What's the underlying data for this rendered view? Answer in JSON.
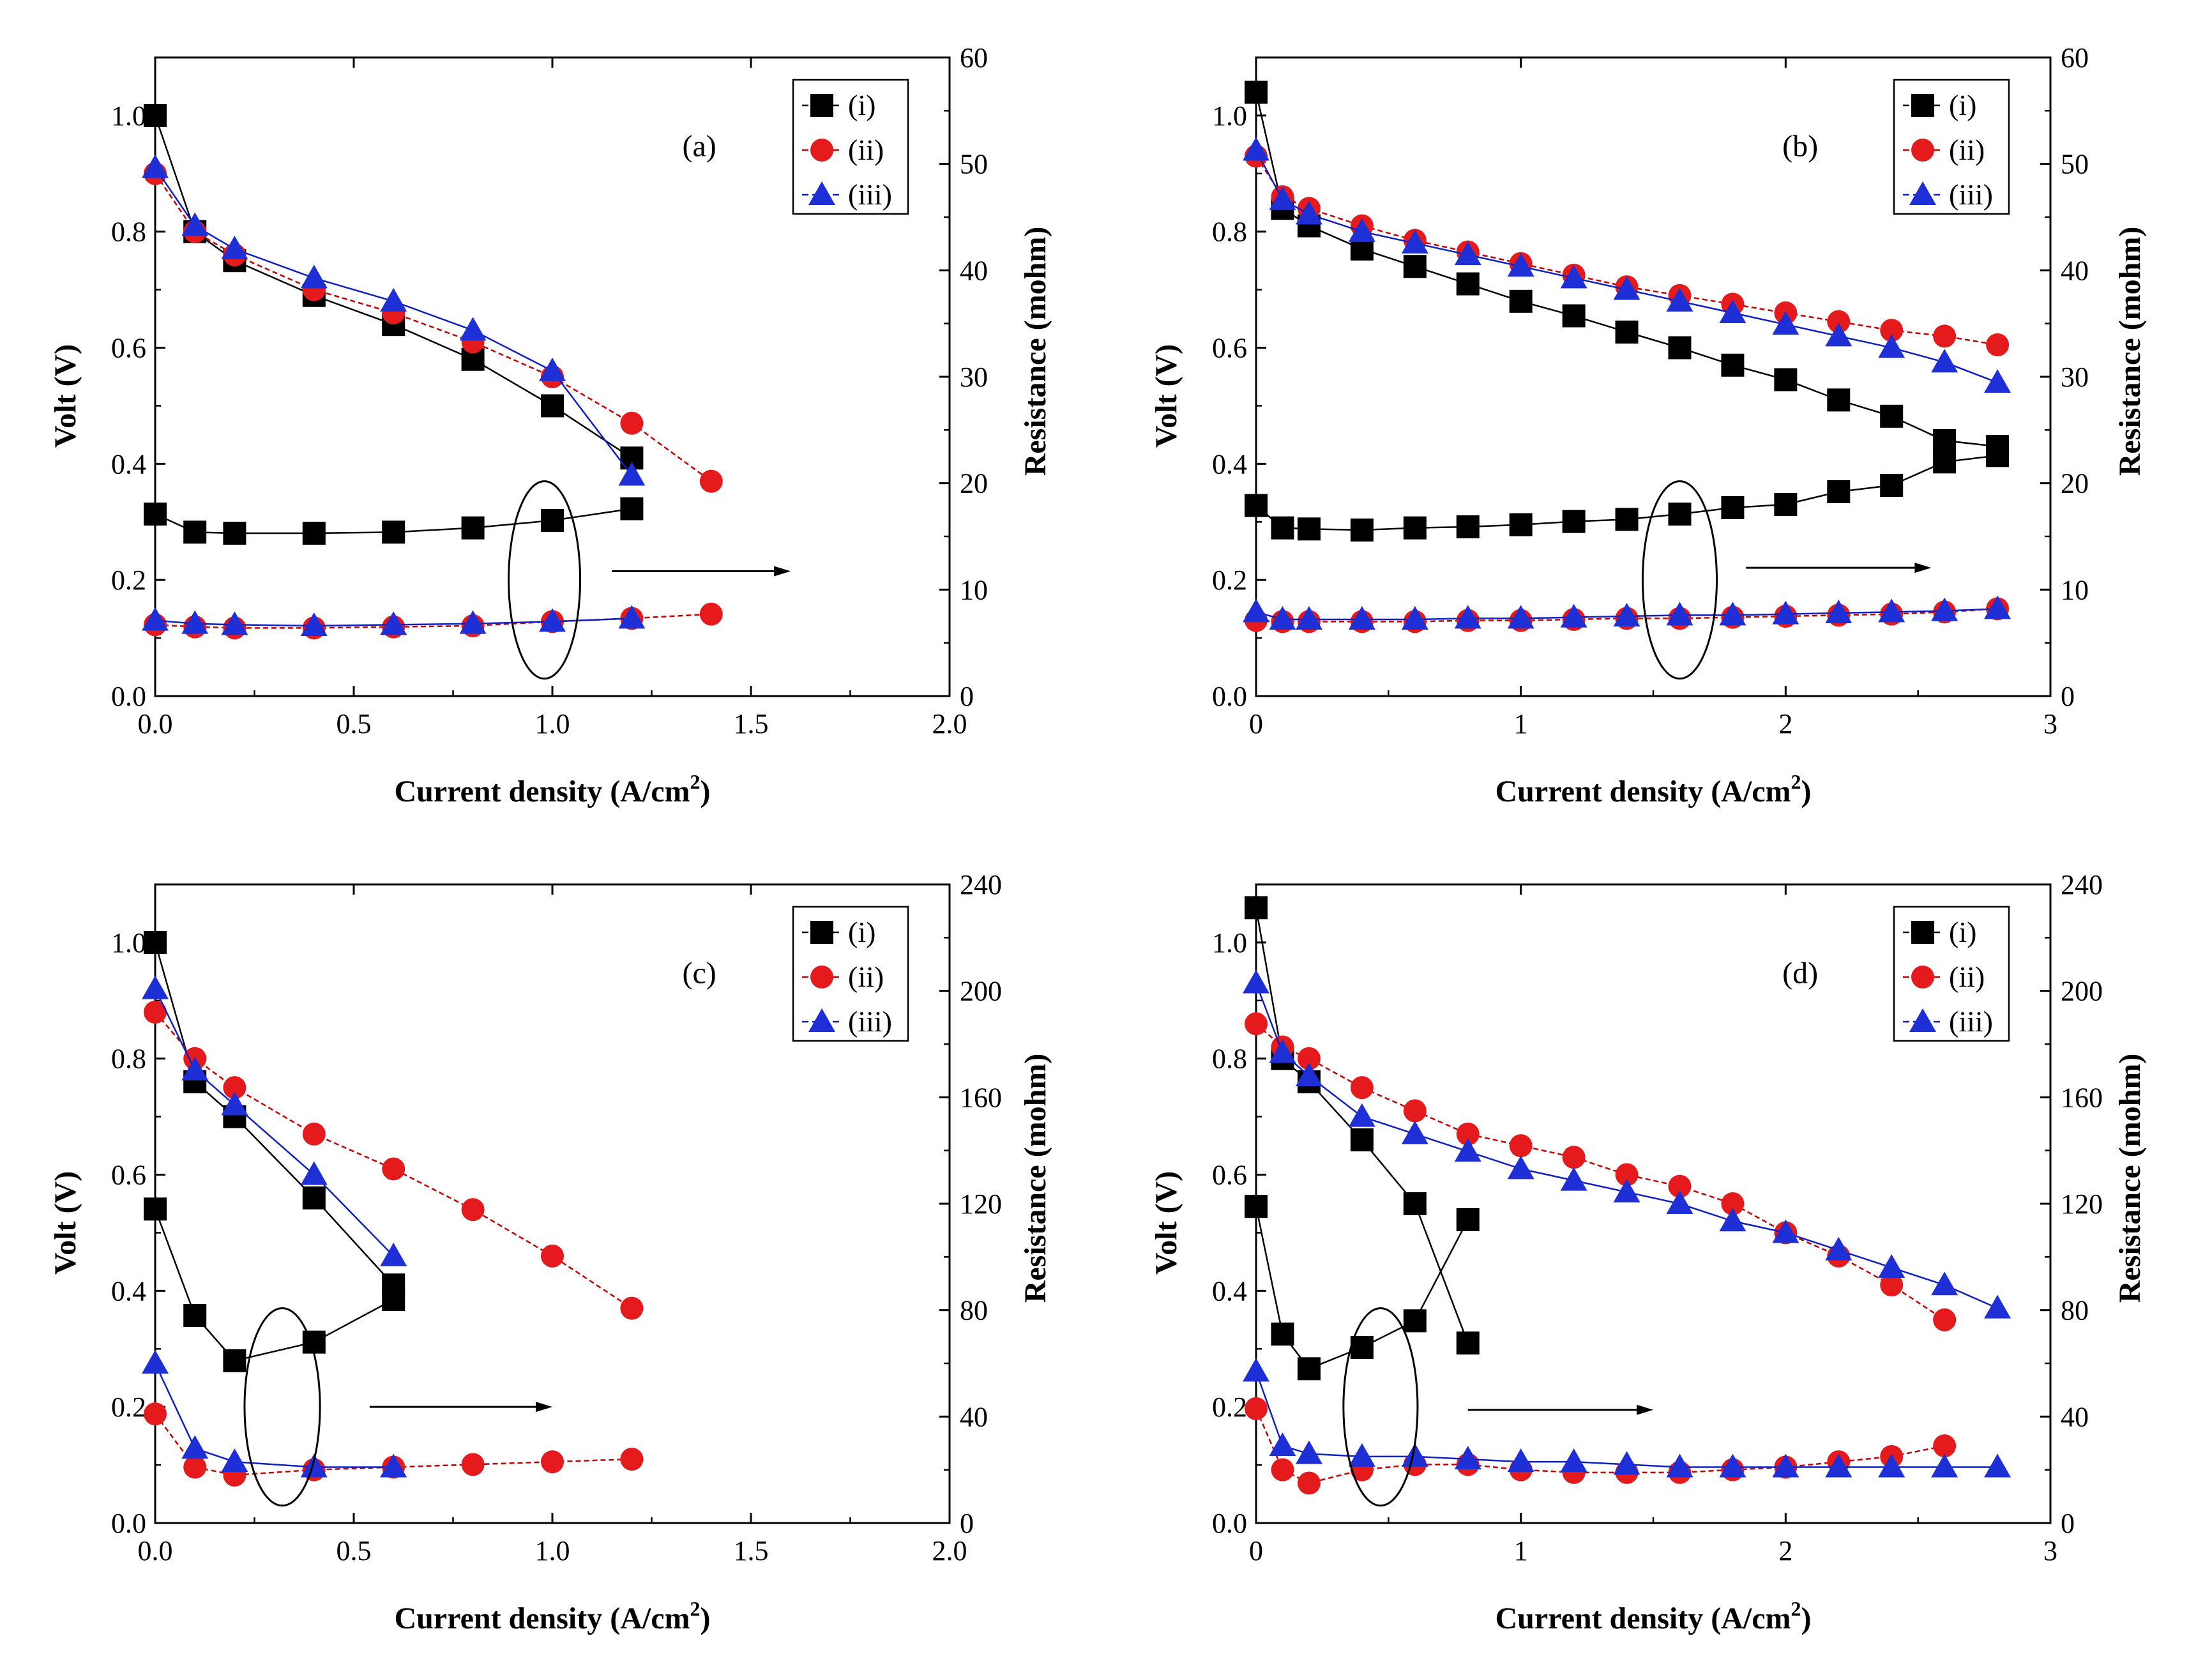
{
  "figure": {
    "description_panels": [
      "a",
      "b",
      "c",
      "d"
    ]
  },
  "colors": {
    "series_i": "#000000",
    "series_ii": "#e41a1c",
    "series_iii": "#1f2fd6",
    "line_i": "#000000",
    "line_ii": "#c40000",
    "line_iii": "#1020c0"
  },
  "chart_data": [
    {
      "type": "scatter",
      "panel": "(a)",
      "xlabel": "Current density (A/cm",
      "xlabel_sup": "2",
      "xlabel_close": ")",
      "ylabel_left": "Volt (V)",
      "ylabel_right": "Resistance (mohm)",
      "xlim": [
        0,
        2.0
      ],
      "ylim_left": [
        0,
        1.1
      ],
      "ylim_right": [
        0,
        60
      ],
      "xticks": [
        0,
        0.5,
        1.0,
        1.5,
        2.0
      ],
      "xtick_labels": [
        "0.0",
        "0.5",
        "1.0",
        "1.5",
        "2.0"
      ],
      "yticks_left": [
        0,
        0.2,
        0.4,
        0.6,
        0.8,
        1.0
      ],
      "ytick_labels_left": [
        "0.0",
        "0.2",
        "0.4",
        "0.6",
        "0.8",
        "1.0"
      ],
      "yticks_right": [
        0,
        10,
        20,
        30,
        40,
        50,
        60
      ],
      "ytick_labels_right": [
        "0",
        "10",
        "20",
        "30",
        "40",
        "50",
        "60"
      ],
      "legend": [
        "(i)",
        "(ii)",
        "(iii)"
      ],
      "legend_position": "top-right",
      "voltage": [
        {
          "name": "(i)",
          "x": [
            0,
            0.1,
            0.2,
            0.4,
            0.6,
            0.8,
            1.0,
            1.2
          ],
          "y": [
            1.0,
            0.8,
            0.75,
            0.69,
            0.64,
            0.58,
            0.5,
            0.41
          ]
        },
        {
          "name": "(ii)",
          "x": [
            0,
            0.1,
            0.2,
            0.4,
            0.6,
            0.8,
            1.0,
            1.2,
            1.4
          ],
          "y": [
            0.9,
            0.8,
            0.76,
            0.7,
            0.66,
            0.61,
            0.55,
            0.47,
            0.37
          ]
        },
        {
          "name": "(iii)",
          "x": [
            0,
            0.1,
            0.2,
            0.4,
            0.6,
            0.8,
            1.0,
            1.2
          ],
          "y": [
            0.91,
            0.81,
            0.77,
            0.72,
            0.68,
            0.63,
            0.56,
            0.38
          ]
        }
      ],
      "resistance": [
        {
          "name": "(i)",
          "x": [
            0,
            0.1,
            0.2,
            0.4,
            0.6,
            0.8,
            1.0,
            1.2
          ],
          "y": [
            17.1,
            15.4,
            15.3,
            15.3,
            15.4,
            15.8,
            16.5,
            17.6
          ]
        },
        {
          "name": "(ii)",
          "x": [
            0,
            0.1,
            0.2,
            0.4,
            0.6,
            0.8,
            1.0,
            1.2,
            1.4
          ],
          "y": [
            6.7,
            6.5,
            6.4,
            6.4,
            6.5,
            6.6,
            7.0,
            7.3,
            7.7
          ]
        },
        {
          "name": "(iii)",
          "x": [
            0,
            0.1,
            0.2,
            0.4,
            0.6,
            0.8,
            1.0,
            1.2
          ],
          "y": [
            7.1,
            6.8,
            6.7,
            6.6,
            6.7,
            6.8,
            7.0,
            7.3
          ]
        }
      ],
      "annotation": {
        "ellipse_center": [
          0.98,
          0.2
        ],
        "ellipse_radius": [
          0.09,
          0.17
        ],
        "arrow_from": [
          1.15,
          0.215
        ],
        "arrow_to": [
          1.6,
          0.215
        ]
      }
    },
    {
      "type": "scatter",
      "panel": "(b)",
      "xlabel": "Current density (A/cm",
      "xlabel_sup": "2",
      "xlabel_close": ")",
      "ylabel_left": "Volt (V)",
      "ylabel_right": "Resistance (mohm)",
      "xlim": [
        0,
        3
      ],
      "ylim_left": [
        0,
        1.1
      ],
      "ylim_right": [
        0,
        60
      ],
      "xticks": [
        0,
        1,
        2,
        3
      ],
      "xtick_labels": [
        "0",
        "1",
        "2",
        "3"
      ],
      "yticks_left": [
        0,
        0.2,
        0.4,
        0.6,
        0.8,
        1.0
      ],
      "ytick_labels_left": [
        "0.0",
        "0.2",
        "0.4",
        "0.6",
        "0.8",
        "1.0"
      ],
      "yticks_right": [
        0,
        10,
        20,
        30,
        40,
        50,
        60
      ],
      "ytick_labels_right": [
        "0",
        "10",
        "20",
        "30",
        "40",
        "50",
        "60"
      ],
      "legend": [
        "(i)",
        "(ii)",
        "(iii)"
      ],
      "legend_position": "top-right",
      "voltage": [
        {
          "name": "(i)",
          "x": [
            0,
            0.1,
            0.2,
            0.4,
            0.6,
            0.8,
            1.0,
            1.2,
            1.4,
            1.6,
            1.8,
            2.0,
            2.2,
            2.4,
            2.6,
            2.8
          ],
          "y": [
            1.04,
            0.84,
            0.81,
            0.77,
            0.74,
            0.71,
            0.68,
            0.655,
            0.627,
            0.6,
            0.57,
            0.545,
            0.51,
            0.482,
            0.44,
            0.43
          ]
        },
        {
          "name": "(ii)",
          "x": [
            0,
            0.1,
            0.2,
            0.4,
            0.6,
            0.8,
            1.0,
            1.2,
            1.4,
            1.6,
            1.8,
            2.0,
            2.2,
            2.4,
            2.6,
            2.8
          ],
          "y": [
            0.93,
            0.86,
            0.84,
            0.81,
            0.785,
            0.765,
            0.745,
            0.725,
            0.705,
            0.69,
            0.675,
            0.66,
            0.645,
            0.63,
            0.62,
            0.605
          ]
        },
        {
          "name": "(iii)",
          "x": [
            0,
            0.1,
            0.2,
            0.4,
            0.6,
            0.8,
            1.0,
            1.2,
            1.4,
            1.6,
            1.8,
            2.0,
            2.2,
            2.4,
            2.6,
            2.8
          ],
          "y": [
            0.94,
            0.855,
            0.83,
            0.8,
            0.78,
            0.76,
            0.74,
            0.72,
            0.7,
            0.68,
            0.66,
            0.64,
            0.62,
            0.6,
            0.575,
            0.54
          ]
        }
      ],
      "resistance": [
        {
          "name": "(i)",
          "x": [
            0,
            0.1,
            0.2,
            0.4,
            0.6,
            0.8,
            1.0,
            1.2,
            1.4,
            1.6,
            1.8,
            2.0,
            2.2,
            2.4,
            2.6,
            2.8
          ],
          "y": [
            17.9,
            15.8,
            15.7,
            15.6,
            15.8,
            15.9,
            16.1,
            16.4,
            16.6,
            17.1,
            17.7,
            18.0,
            19.2,
            19.8,
            22.0,
            22.6
          ]
        },
        {
          "name": "(ii)",
          "x": [
            0,
            0.1,
            0.2,
            0.4,
            0.6,
            0.8,
            1.0,
            1.2,
            1.4,
            1.6,
            1.8,
            2.0,
            2.2,
            2.4,
            2.6,
            2.8
          ],
          "y": [
            7.1,
            7.0,
            7.0,
            7.0,
            7.0,
            7.1,
            7.1,
            7.2,
            7.3,
            7.3,
            7.4,
            7.5,
            7.6,
            7.7,
            7.9,
            8.2
          ]
        },
        {
          "name": "(iii)",
          "x": [
            0,
            0.1,
            0.2,
            0.4,
            0.6,
            0.8,
            1.0,
            1.2,
            1.4,
            1.6,
            1.8,
            2.0,
            2.2,
            2.4,
            2.6,
            2.8
          ],
          "y": [
            7.9,
            7.2,
            7.2,
            7.2,
            7.2,
            7.3,
            7.3,
            7.4,
            7.5,
            7.6,
            7.6,
            7.7,
            7.8,
            7.9,
            8.0,
            8.2
          ]
        }
      ],
      "annotation": {
        "ellipse_center": [
          1.6,
          0.2
        ],
        "ellipse_radius": [
          0.14,
          0.17
        ],
        "arrow_from": [
          1.85,
          0.221
        ],
        "arrow_to": [
          2.55,
          0.221
        ]
      }
    },
    {
      "type": "scatter",
      "panel": "(c)",
      "xlabel": "Current density (A/cm",
      "xlabel_sup": "2",
      "xlabel_close": ")",
      "ylabel_left": "Volt (V)",
      "ylabel_right": "Resistance (mohm)",
      "xlim": [
        0,
        2.0
      ],
      "ylim_left": [
        0,
        1.1
      ],
      "ylim_right": [
        0,
        240
      ],
      "xticks": [
        0,
        0.5,
        1.0,
        1.5,
        2.0
      ],
      "xtick_labels": [
        "0.0",
        "0.5",
        "1.0",
        "1.5",
        "2.0"
      ],
      "yticks_left": [
        0,
        0.2,
        0.4,
        0.6,
        0.8,
        1.0
      ],
      "ytick_labels_left": [
        "0.0",
        "0.2",
        "0.4",
        "0.6",
        "0.8",
        "1.0"
      ],
      "yticks_right": [
        0,
        40,
        80,
        120,
        160,
        200,
        240
      ],
      "ytick_labels_right": [
        "0",
        "40",
        "80",
        "120",
        "160",
        "200",
        "240"
      ],
      "legend": [
        "(i)",
        "(ii)",
        "(iii)"
      ],
      "legend_position": "top-right",
      "voltage": [
        {
          "name": "(i)",
          "x": [
            0,
            0.1,
            0.2,
            0.4,
            0.6
          ],
          "y": [
            1.0,
            0.76,
            0.7,
            0.56,
            0.41
          ]
        },
        {
          "name": "(ii)",
          "x": [
            0,
            0.1,
            0.2,
            0.4,
            0.6,
            0.8,
            1.0,
            1.2
          ],
          "y": [
            0.88,
            0.8,
            0.75,
            0.67,
            0.61,
            0.54,
            0.46,
            0.37
          ]
        },
        {
          "name": "(iii)",
          "x": [
            0,
            0.1,
            0.2,
            0.4,
            0.6
          ],
          "y": [
            0.92,
            0.78,
            0.72,
            0.6,
            0.46
          ]
        }
      ],
      "resistance": [
        {
          "name": "(i)",
          "x": [
            0,
            0.1,
            0.2,
            0.4,
            0.6
          ],
          "y": [
            118,
            78,
            61,
            68,
            84
          ]
        },
        {
          "name": "(ii)",
          "x": [
            0,
            0.1,
            0.2,
            0.4,
            0.6,
            0.8,
            1.0,
            1.2
          ],
          "y": [
            41,
            21,
            18,
            20,
            21,
            22,
            23,
            24
          ]
        },
        {
          "name": "(iii)",
          "x": [
            0,
            0.1,
            0.2,
            0.4,
            0.6
          ],
          "y": [
            60,
            28,
            23,
            21,
            21
          ]
        }
      ],
      "annotation": {
        "ellipse_center": [
          0.32,
          0.2
        ],
        "ellipse_radius": [
          0.095,
          0.17
        ],
        "arrow_from": [
          0.54,
          0.2
        ],
        "arrow_to": [
          1.0,
          0.2
        ]
      }
    },
    {
      "type": "scatter",
      "panel": "(d)",
      "xlabel": "Current density (A/cm",
      "xlabel_sup": "2",
      "xlabel_close": ")",
      "ylabel_left": "Volt (V)",
      "ylabel_right": "Resistance (mohm)",
      "xlim": [
        0,
        3
      ],
      "ylim_left": [
        0,
        1.1
      ],
      "ylim_right": [
        0,
        240
      ],
      "xticks": [
        0,
        1,
        2,
        3
      ],
      "xtick_labels": [
        "0",
        "1",
        "2",
        "3"
      ],
      "yticks_left": [
        0,
        0.2,
        0.4,
        0.6,
        0.8,
        1.0
      ],
      "ytick_labels_left": [
        "0.0",
        "0.2",
        "0.4",
        "0.6",
        "0.8",
        "1.0"
      ],
      "yticks_right": [
        0,
        40,
        80,
        120,
        160,
        200,
        240
      ],
      "ytick_labels_right": [
        "0",
        "40",
        "80",
        "120",
        "160",
        "200",
        "240"
      ],
      "legend": [
        "(i)",
        "(ii)",
        "(iii)"
      ],
      "legend_position": "top-right",
      "voltage": [
        {
          "name": "(i)",
          "x": [
            0,
            0.1,
            0.2,
            0.4,
            0.6,
            0.8
          ],
          "y": [
            1.06,
            0.8,
            0.76,
            0.66,
            0.55,
            0.31
          ]
        },
        {
          "name": "(ii)",
          "x": [
            0,
            0.1,
            0.2,
            0.4,
            0.6,
            0.8,
            1.0,
            1.2,
            1.4,
            1.6,
            1.8,
            2.0,
            2.2,
            2.4,
            2.6
          ],
          "y": [
            0.86,
            0.82,
            0.8,
            0.75,
            0.71,
            0.67,
            0.65,
            0.63,
            0.6,
            0.58,
            0.55,
            0.5,
            0.46,
            0.41,
            0.35
          ]
        },
        {
          "name": "(iii)",
          "x": [
            0,
            0.1,
            0.2,
            0.4,
            0.6,
            0.8,
            1.0,
            1.2,
            1.4,
            1.6,
            1.8,
            2.0,
            2.2,
            2.4,
            2.6,
            2.8
          ],
          "y": [
            0.93,
            0.81,
            0.77,
            0.7,
            0.67,
            0.64,
            0.61,
            0.59,
            0.57,
            0.55,
            0.52,
            0.5,
            0.47,
            0.44,
            0.41,
            0.37
          ]
        }
      ],
      "resistance": [
        {
          "name": "(i)",
          "x": [
            0,
            0.1,
            0.2,
            0.4,
            0.6,
            0.8
          ],
          "y": [
            119,
            71,
            58,
            66,
            76,
            114
          ]
        },
        {
          "name": "(ii)",
          "x": [
            0,
            0.1,
            0.2,
            0.4,
            0.6,
            0.8,
            1.0,
            1.2,
            1.4,
            1.6,
            1.8,
            2.0,
            2.2,
            2.4,
            2.6
          ],
          "y": [
            43,
            20,
            15,
            20,
            22,
            22,
            20,
            19,
            19,
            19,
            20,
            21,
            23,
            25,
            29
          ]
        },
        {
          "name": "(iii)",
          "x": [
            0,
            0.1,
            0.2,
            0.4,
            0.6,
            0.8,
            1.0,
            1.2,
            1.4,
            1.6,
            1.8,
            2.0,
            2.2,
            2.4,
            2.6,
            2.8
          ],
          "y": [
            57,
            29,
            26,
            25,
            25,
            24,
            23,
            23,
            22,
            21,
            21,
            21,
            21,
            21,
            21,
            21
          ]
        }
      ],
      "annotation": {
        "ellipse_center": [
          0.47,
          0.2
        ],
        "ellipse_radius": [
          0.14,
          0.17
        ],
        "arrow_from": [
          0.8,
          0.195
        ],
        "arrow_to": [
          1.5,
          0.195
        ]
      }
    }
  ]
}
